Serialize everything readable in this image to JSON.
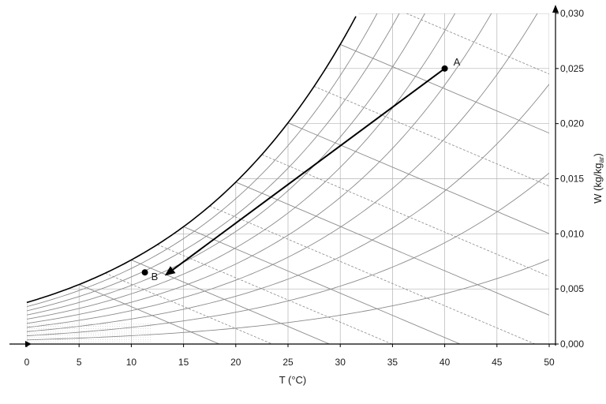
{
  "chart_data": {
    "type": "line",
    "title": "",
    "xlabel": "T (°C)",
    "ylabel": "W (kg/kg",
    "ylabel_sub": "ar",
    "ylabel_close": ")",
    "xlim": [
      0,
      50
    ],
    "ylim": [
      0,
      0.03
    ],
    "x_ticks": [
      0,
      5,
      10,
      15,
      20,
      25,
      30,
      35,
      40,
      45,
      50
    ],
    "x_tick_labels": [
      "0",
      "5",
      "10",
      "15",
      "20",
      "25",
      "30",
      "35",
      "40",
      "45",
      "50"
    ],
    "y_ticks": [
      0,
      0.005,
      0.01,
      0.015,
      0.02,
      0.025,
      0.03
    ],
    "y_tick_labels": [
      "0,000",
      "0,005",
      "0,010",
      "0,015",
      "0,020",
      "0,025",
      "0,030"
    ],
    "y_axis_side": "right",
    "grid": true,
    "relative_humidity_curves": [
      0.1,
      0.2,
      0.3,
      0.4,
      0.5,
      0.6,
      0.7,
      0.8,
      0.9,
      1.0
    ],
    "wet_bulb_lines_c": [
      5,
      10,
      15,
      20,
      25,
      30
    ],
    "enthalpy_lines_c": [
      7.5,
      12.5,
      17.5,
      22.5,
      27.5,
      32.5
    ],
    "points": [
      {
        "label": "A",
        "T": 40,
        "W": 0.025
      },
      {
        "label": "B",
        "T": 11.3,
        "W": 0.0065
      }
    ],
    "process": {
      "from": "A",
      "to": "B",
      "end_T": 13.2,
      "end_W": 0.0062,
      "arrow": true
    },
    "colors": {
      "saturation": "#000000",
      "grid": "#b3b3b3",
      "curves": "#8a8a8a",
      "process": "#000000"
    }
  }
}
